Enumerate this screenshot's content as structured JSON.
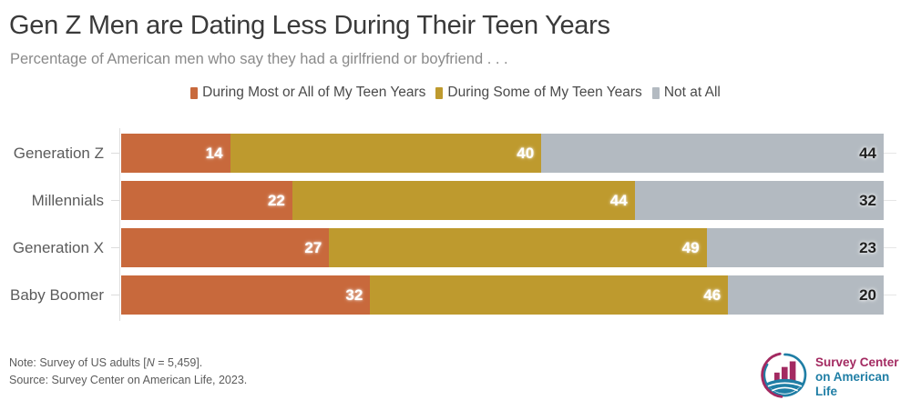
{
  "chart_data": {
    "type": "bar",
    "orientation": "horizontal",
    "stacked": true,
    "normalized_full_width": true,
    "title": "Gen Z Men are Dating Less During Their Teen Years",
    "subtitle": "Percentage of American men who say they had a girlfriend or boyfriend . . .",
    "categories": [
      "Generation Z",
      "Millennials",
      "Generation X",
      "Baby Boomer"
    ],
    "series": [
      {
        "name": "During Most or All of My Teen Years",
        "color": "#c8693c",
        "values": [
          14,
          22,
          27,
          32
        ]
      },
      {
        "name": "During Some of My Teen Years",
        "color": "#be9a2e",
        "values": [
          40,
          44,
          49,
          46
        ]
      },
      {
        "name": "Not at All",
        "color": "#b3bac1",
        "values": [
          44,
          32,
          23,
          20
        ]
      }
    ],
    "value_labels": "inside-end",
    "legend_position": "top-center",
    "xlabel": "",
    "ylabel": ""
  },
  "footer": {
    "note_prefix": "Note: Survey of US adults [",
    "note_italic": "N",
    "note_suffix": " = 5,459].",
    "source": "Source: Survey Center on American Life, 2023."
  },
  "logo": {
    "line1": "Survey Center",
    "line2": "on American Life",
    "accent_magenta": "#a32a61",
    "accent_teal": "#1f7ea5"
  }
}
